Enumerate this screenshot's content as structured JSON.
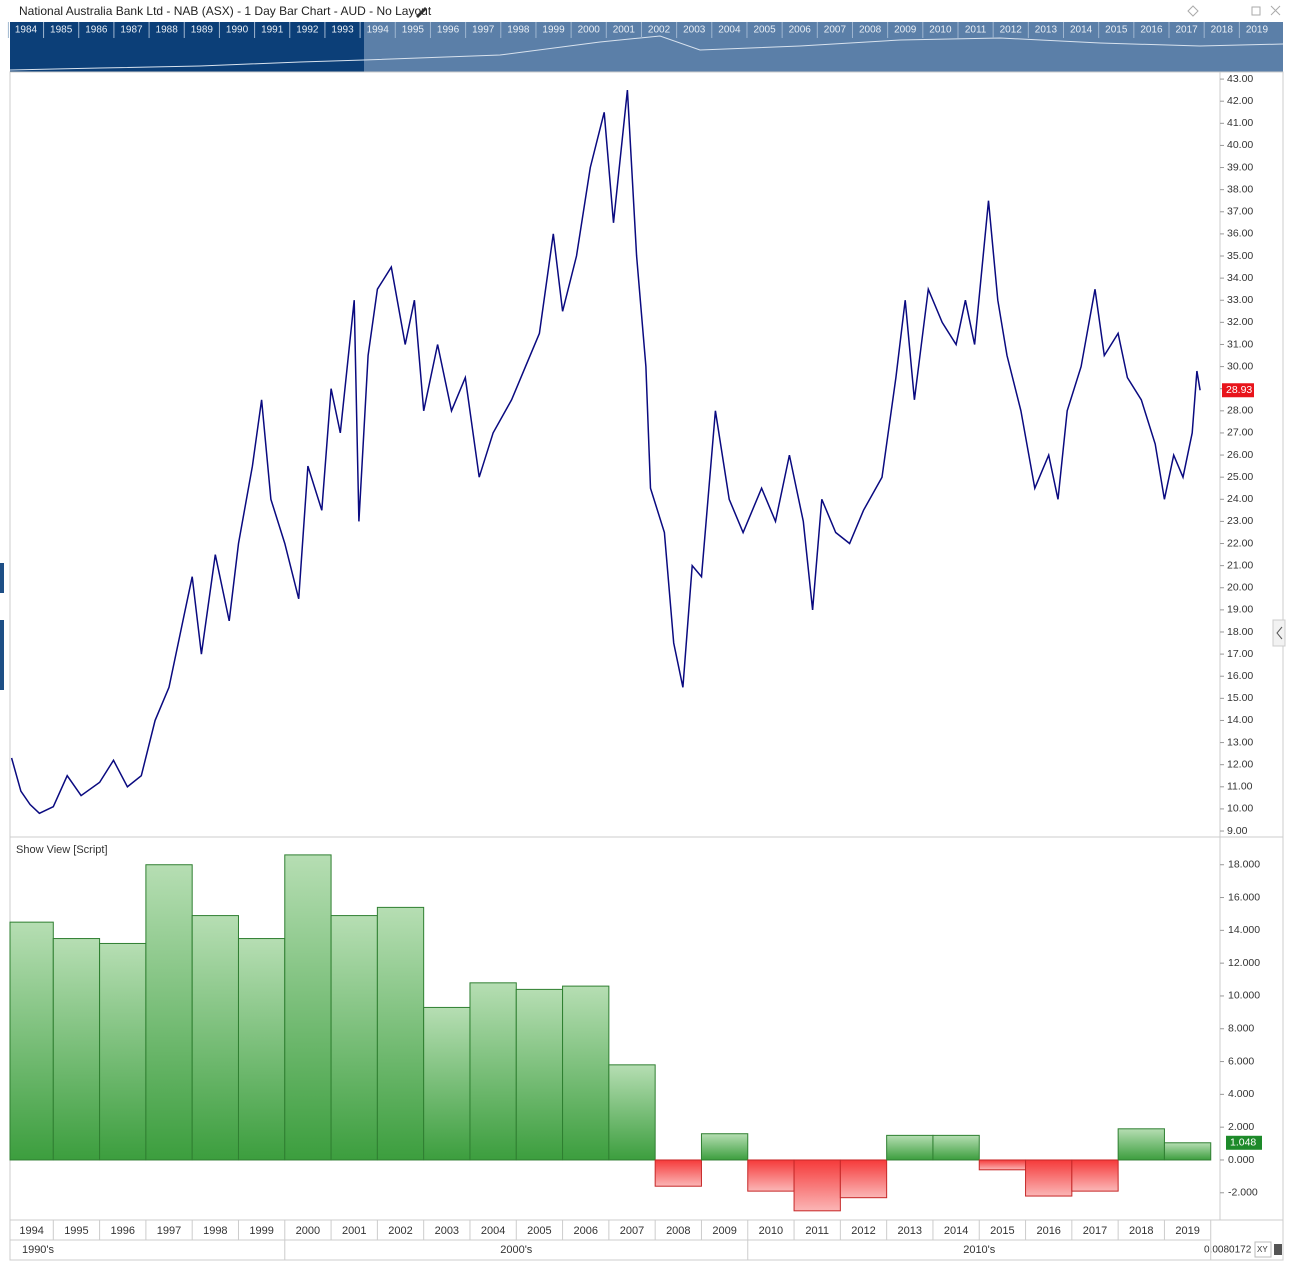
{
  "title": "National Australia Bank Ltd - NAB (ASX) - 1 Day Bar Chart - AUD - No Layout",
  "navigator": {
    "years": [
      1984,
      1985,
      1986,
      1987,
      1988,
      1989,
      1990,
      1991,
      1992,
      1993,
      1994,
      1995,
      1996,
      1997,
      1998,
      1999,
      2000,
      2001,
      2002,
      2003,
      2004,
      2005,
      2006,
      2007,
      2008,
      2009,
      2010,
      2011,
      2012,
      2013,
      2014,
      2015,
      2016,
      2017,
      2018,
      2019
    ]
  },
  "scale_readout": "0.0080172",
  "xy_button": "XY",
  "chart_data": [
    {
      "type": "line",
      "color": "#0a0a80",
      "xlim": [
        1994.065,
        2020.2
      ],
      "ylim": [
        8.73,
        43.32
      ],
      "yticks": [
        {
          "value": 9,
          "label": "9.00"
        },
        {
          "value": 10,
          "label": "10.00"
        },
        {
          "value": 11,
          "label": "11.00"
        },
        {
          "value": 12,
          "label": "12.00"
        },
        {
          "value": 13,
          "label": "13.00"
        },
        {
          "value": 14,
          "label": "14.00"
        },
        {
          "value": 15,
          "label": "15.00"
        },
        {
          "value": 16,
          "label": "16.00"
        },
        {
          "value": 17,
          "label": "17.00"
        },
        {
          "value": 18,
          "label": "18.00"
        },
        {
          "value": 19,
          "label": "19.00"
        },
        {
          "value": 20,
          "label": "20.00"
        },
        {
          "value": 21,
          "label": "21.00"
        },
        {
          "value": 22,
          "label": "22.00"
        },
        {
          "value": 23,
          "label": "23.00"
        },
        {
          "value": 24,
          "label": "24.00"
        },
        {
          "value": 25,
          "label": "25.00"
        },
        {
          "value": 26,
          "label": "26.00"
        },
        {
          "value": 27,
          "label": "27.00"
        },
        {
          "value": 28,
          "label": "28.00"
        },
        {
          "value": 29,
          "label": "29.00"
        },
        {
          "value": 30,
          "label": "30.00"
        },
        {
          "value": 31,
          "label": "31.00"
        },
        {
          "value": 32,
          "label": "32.00"
        },
        {
          "value": 33,
          "label": "33.00"
        },
        {
          "value": 34,
          "label": "34.00"
        },
        {
          "value": 35,
          "label": "35.00"
        },
        {
          "value": 36,
          "label": "36.00"
        },
        {
          "value": 37,
          "label": "37.00"
        },
        {
          "value": 38,
          "label": "38.00"
        },
        {
          "value": 39,
          "label": "39.00"
        },
        {
          "value": 40,
          "label": "40.00"
        },
        {
          "value": 41,
          "label": "41.00"
        },
        {
          "value": 42,
          "label": "42.00"
        },
        {
          "value": 43,
          "label": "43.00"
        }
      ],
      "x": [
        1994.1,
        1994.3,
        1994.5,
        1994.7,
        1995.0,
        1995.3,
        1995.6,
        1996.0,
        1996.3,
        1996.6,
        1996.9,
        1997.2,
        1997.5,
        1997.8,
        1998.0,
        1998.2,
        1998.5,
        1998.8,
        1999.0,
        1999.3,
        1999.5,
        1999.7,
        2000.0,
        2000.3,
        2000.5,
        2000.8,
        2001.0,
        2001.2,
        2001.5,
        2001.6,
        2001.8,
        2002.0,
        2002.3,
        2002.6,
        2002.8,
        2003.0,
        2003.3,
        2003.6,
        2003.9,
        2004.2,
        2004.5,
        2004.9,
        2005.2,
        2005.5,
        2005.8,
        2006.0,
        2006.3,
        2006.6,
        2006.9,
        2007.1,
        2007.4,
        2007.6,
        2007.8,
        2007.9,
        2008.2,
        2008.4,
        2008.6,
        2008.8,
        2009.0,
        2009.3,
        2009.6,
        2009.9,
        2010.3,
        2010.6,
        2010.9,
        2011.2,
        2011.4,
        2011.6,
        2011.9,
        2012.2,
        2012.5,
        2012.9,
        2013.2,
        2013.4,
        2013.6,
        2013.9,
        2014.2,
        2014.5,
        2014.7,
        2014.9,
        2015.2,
        2015.4,
        2015.6,
        2015.9,
        2016.2,
        2016.5,
        2016.7,
        2016.9,
        2017.2,
        2017.5,
        2017.7,
        2018.0,
        2018.2,
        2018.5,
        2018.8,
        2019.0,
        2019.2,
        2019.4,
        2019.6,
        2019.7,
        2019.77
      ],
      "values": [
        12.3,
        10.8,
        10.2,
        9.8,
        10.1,
        11.5,
        10.6,
        11.2,
        12.2,
        11.0,
        11.5,
        14.0,
        15.5,
        18.5,
        20.5,
        17.0,
        21.5,
        18.5,
        22.0,
        25.5,
        28.5,
        24.0,
        22.0,
        19.5,
        25.5,
        23.5,
        29.0,
        27.0,
        33.0,
        23.0,
        30.5,
        33.5,
        34.5,
        31.0,
        33.0,
        28.0,
        31.0,
        28.0,
        29.5,
        25.0,
        27.0,
        28.5,
        30.0,
        31.5,
        36.0,
        32.5,
        35.0,
        39.0,
        41.5,
        36.5,
        42.5,
        35.0,
        30.0,
        24.5,
        22.5,
        17.5,
        15.5,
        21.0,
        20.5,
        28.0,
        24.0,
        22.5,
        24.5,
        23.0,
        26.0,
        23.0,
        19.0,
        24.0,
        22.5,
        22.0,
        23.5,
        25.0,
        29.5,
        33.0,
        28.5,
        33.5,
        32.0,
        31.0,
        33.0,
        31.0,
        37.5,
        33.0,
        30.5,
        28.0,
        24.5,
        26.0,
        24.0,
        28.0,
        30.0,
        33.5,
        30.5,
        31.5,
        29.5,
        28.5,
        26.5,
        24.0,
        26.0,
        25.0,
        27.0,
        29.8,
        28.93
      ]
    },
    {
      "type": "step",
      "title": "Show View [Script]",
      "ylim": [
        -3.66,
        19.63
      ],
      "yticks": [
        {
          "value": -2,
          "label": "-2.000"
        },
        {
          "value": 0,
          "label": "0.000"
        },
        {
          "value": 2,
          "label": "2.000"
        },
        {
          "value": 4,
          "label": "4.000"
        },
        {
          "value": 6,
          "label": "6.000"
        },
        {
          "value": 8,
          "label": "8.000"
        },
        {
          "value": 10,
          "label": "10.000"
        },
        {
          "value": 12,
          "label": "12.000"
        },
        {
          "value": 14,
          "label": "14.000"
        },
        {
          "value": 16,
          "label": "16.000"
        },
        {
          "value": 18,
          "label": "18.000"
        }
      ],
      "categories": [
        1994,
        1995,
        1996,
        1997,
        1998,
        1999,
        2000,
        2001,
        2002,
        2003,
        2004,
        2005,
        2006,
        2007,
        2008,
        2009,
        2010,
        2011,
        2012,
        2013,
        2014,
        2015,
        2016,
        2017,
        2018,
        2019
      ],
      "groups": [
        "1990's",
        "2000's",
        "2010's"
      ],
      "values": [
        14.5,
        13.5,
        13.2,
        18.0,
        14.9,
        13.5,
        18.6,
        14.9,
        15.4,
        9.3,
        10.8,
        10.4,
        10.6,
        5.8,
        -1.6,
        1.6,
        -1.9,
        -3.1,
        -2.3,
        1.5,
        1.5,
        -0.6,
        -2.2,
        -1.9,
        1.9,
        1.048
      ],
      "value_labels": [
        null,
        null,
        null,
        null,
        null,
        null,
        null,
        null,
        null,
        null,
        null,
        null,
        null,
        null,
        null,
        null,
        null,
        null,
        null,
        null,
        null,
        null,
        null,
        null,
        null,
        "1.048"
      ]
    }
  ]
}
